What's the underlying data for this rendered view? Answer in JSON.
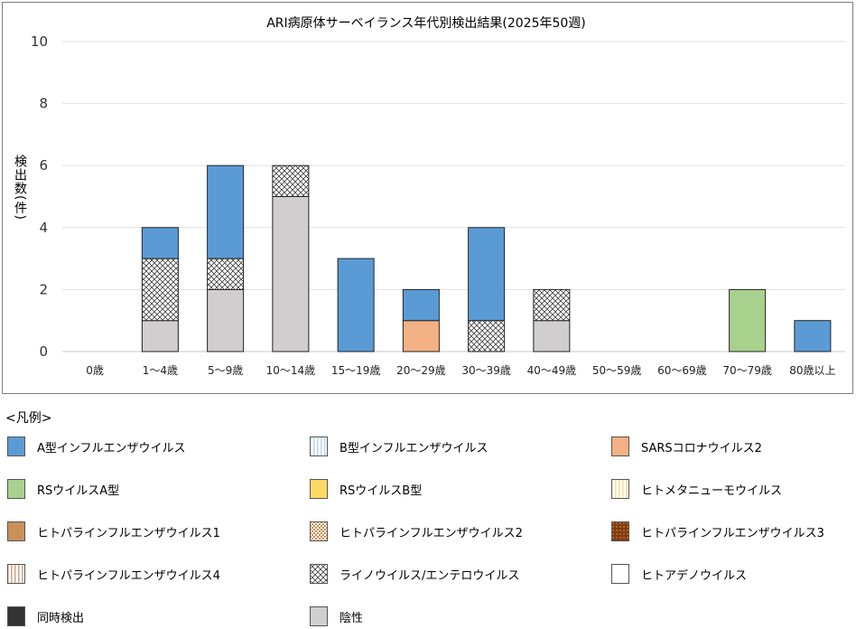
{
  "chart_data": {
    "type": "bar",
    "stacked": true,
    "title": "ARI病原体サーベイランス年代別検出結果(2025年50週)",
    "xlabel": "",
    "ylabel": "検出数(件)",
    "ylim": [
      0,
      10
    ],
    "yticks": [
      "0",
      "2",
      "4",
      "6",
      "8",
      "10"
    ],
    "grid": true,
    "legend_title": "<凡例>",
    "legend_position": "bottom",
    "categories": [
      "0歳",
      "1〜4歳",
      "5〜9歳",
      "10〜14歳",
      "15〜19歳",
      "20〜29歳",
      "30〜39歳",
      "40〜49歳",
      "50〜59歳",
      "60〜69歳",
      "70〜79歳",
      "80歳以上"
    ],
    "series": [
      {
        "name": "A型インフルエンザウイルス",
        "color": "#5b9bd5",
        "pattern": "solid",
        "values": [
          0,
          1,
          3,
          0,
          3,
          1,
          3,
          0,
          0,
          0,
          0,
          1
        ]
      },
      {
        "name": "B型インフルエンザウイルス",
        "color": "#bdd7ee",
        "pattern": "vlines",
        "values": [
          0,
          0,
          0,
          0,
          0,
          0,
          0,
          0,
          0,
          0,
          0,
          0
        ]
      },
      {
        "name": "SARSコロナウイルス2",
        "color": "#f4b183",
        "pattern": "solid",
        "values": [
          0,
          0,
          0,
          0,
          0,
          1,
          0,
          0,
          0,
          0,
          0,
          0
        ]
      },
      {
        "name": "RSウイルスA型",
        "color": "#a9d18e",
        "pattern": "solid",
        "values": [
          0,
          0,
          0,
          0,
          0,
          0,
          0,
          0,
          0,
          0,
          2,
          0
        ]
      },
      {
        "name": "RSウイルスB型",
        "color": "#ffd966",
        "pattern": "solid",
        "values": [
          0,
          0,
          0,
          0,
          0,
          0,
          0,
          0,
          0,
          0,
          0,
          0
        ]
      },
      {
        "name": "ヒトメタニューモウイルス",
        "color": "#f2e19a",
        "pattern": "vlines",
        "values": [
          0,
          0,
          0,
          0,
          0,
          0,
          0,
          0,
          0,
          0,
          0,
          0
        ]
      },
      {
        "name": "ヒトパラインフルエンザウイルス1",
        "color": "#c9915a",
        "pattern": "solid",
        "values": [
          0,
          0,
          0,
          0,
          0,
          0,
          0,
          0,
          0,
          0,
          0,
          0
        ]
      },
      {
        "name": "ヒトパラインフルエンザウイルス2",
        "color": "#c9915a",
        "pattern": "checker",
        "values": [
          0,
          0,
          0,
          0,
          0,
          0,
          0,
          0,
          0,
          0,
          0,
          0
        ]
      },
      {
        "name": "ヒトパラインフルエンザウイルス3",
        "color": "#843c0c",
        "pattern": "dots",
        "values": [
          0,
          0,
          0,
          0,
          0,
          0,
          0,
          0,
          0,
          0,
          0,
          0
        ]
      },
      {
        "name": "ヒトパラインフルエンザウイルス4",
        "color": "#c9a58a",
        "pattern": "vlines",
        "values": [
          0,
          0,
          0,
          0,
          0,
          0,
          0,
          0,
          0,
          0,
          0,
          0
        ]
      },
      {
        "name": "ライノウイルス/エンテロウイルス",
        "color": "#404040",
        "pattern": "crosshatch",
        "values": [
          0,
          2,
          1,
          1,
          0,
          0,
          1,
          1,
          0,
          0,
          0,
          0
        ]
      },
      {
        "name": "ヒトアデノウイルス",
        "color": "#ffffff",
        "pattern": "solid",
        "values": [
          0,
          0,
          0,
          0,
          0,
          0,
          0,
          0,
          0,
          0,
          0,
          0
        ]
      },
      {
        "name": "同時検出",
        "color": "#333333",
        "pattern": "solid",
        "values": [
          0,
          0,
          0,
          0,
          0,
          0,
          0,
          0,
          0,
          0,
          0,
          0
        ]
      },
      {
        "name": "陰性",
        "color": "#d0cece",
        "pattern": "solid",
        "values": [
          0,
          1,
          2,
          5,
          0,
          0,
          0,
          1,
          0,
          0,
          0,
          0
        ]
      }
    ],
    "stack_order": [
      "陰性",
      "ライノウイルス/エンテロウイルス",
      "SARSコロナウイルス2",
      "RSウイルスA型",
      "A型インフルエンザウイルス"
    ]
  }
}
